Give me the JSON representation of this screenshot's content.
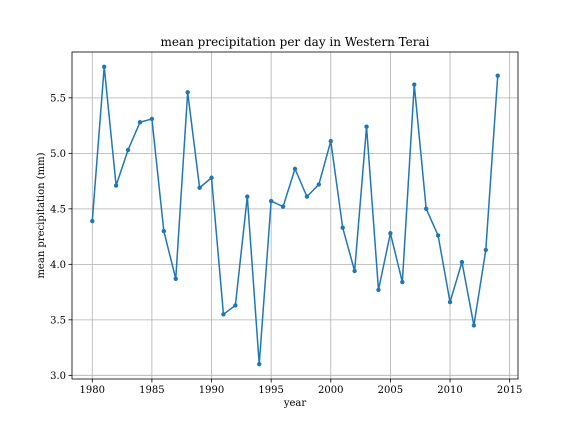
{
  "chart_data": {
    "type": "line",
    "title": "mean precipitation per day in Western Terai",
    "xlabel": "year",
    "ylabel": "mean precipitation (mm)",
    "x": [
      1980,
      1981,
      1982,
      1983,
      1984,
      1985,
      1986,
      1987,
      1988,
      1989,
      1990,
      1991,
      1992,
      1993,
      1994,
      1995,
      1996,
      1997,
      1998,
      1999,
      2000,
      2001,
      2002,
      2003,
      2004,
      2005,
      2006,
      2007,
      2008,
      2009,
      2010,
      2011,
      2012,
      2013,
      2014
    ],
    "series": [
      {
        "values": [
          4.39,
          5.78,
          4.71,
          5.03,
          5.28,
          5.31,
          4.3,
          3.87,
          5.55,
          4.69,
          4.78,
          3.55,
          3.63,
          4.61,
          3.1,
          4.57,
          4.52,
          4.86,
          4.61,
          4.72,
          5.11,
          4.33,
          3.94,
          5.24,
          3.77,
          4.28,
          3.84,
          5.62,
          4.5,
          4.26,
          3.66,
          4.02,
          3.45,
          4.13,
          5.7
        ],
        "color": "#1f77b4"
      }
    ],
    "xlim": [
      1978.3,
      2015.7
    ],
    "ylim": [
      2.967,
      5.913
    ],
    "xticks": [
      1980,
      1985,
      1990,
      1995,
      2000,
      2005,
      2010,
      2015
    ],
    "xtick_labels": [
      "1980",
      "1985",
      "1990",
      "1995",
      "2000",
      "2005",
      "2010",
      "2015"
    ],
    "yticks": [
      3.0,
      3.5,
      4.0,
      4.5,
      5.0,
      5.5
    ],
    "ytick_labels": [
      "3.0",
      "3.5",
      "4.0",
      "4.5",
      "5.0",
      "5.5"
    ],
    "grid": true,
    "marker": "dot"
  }
}
